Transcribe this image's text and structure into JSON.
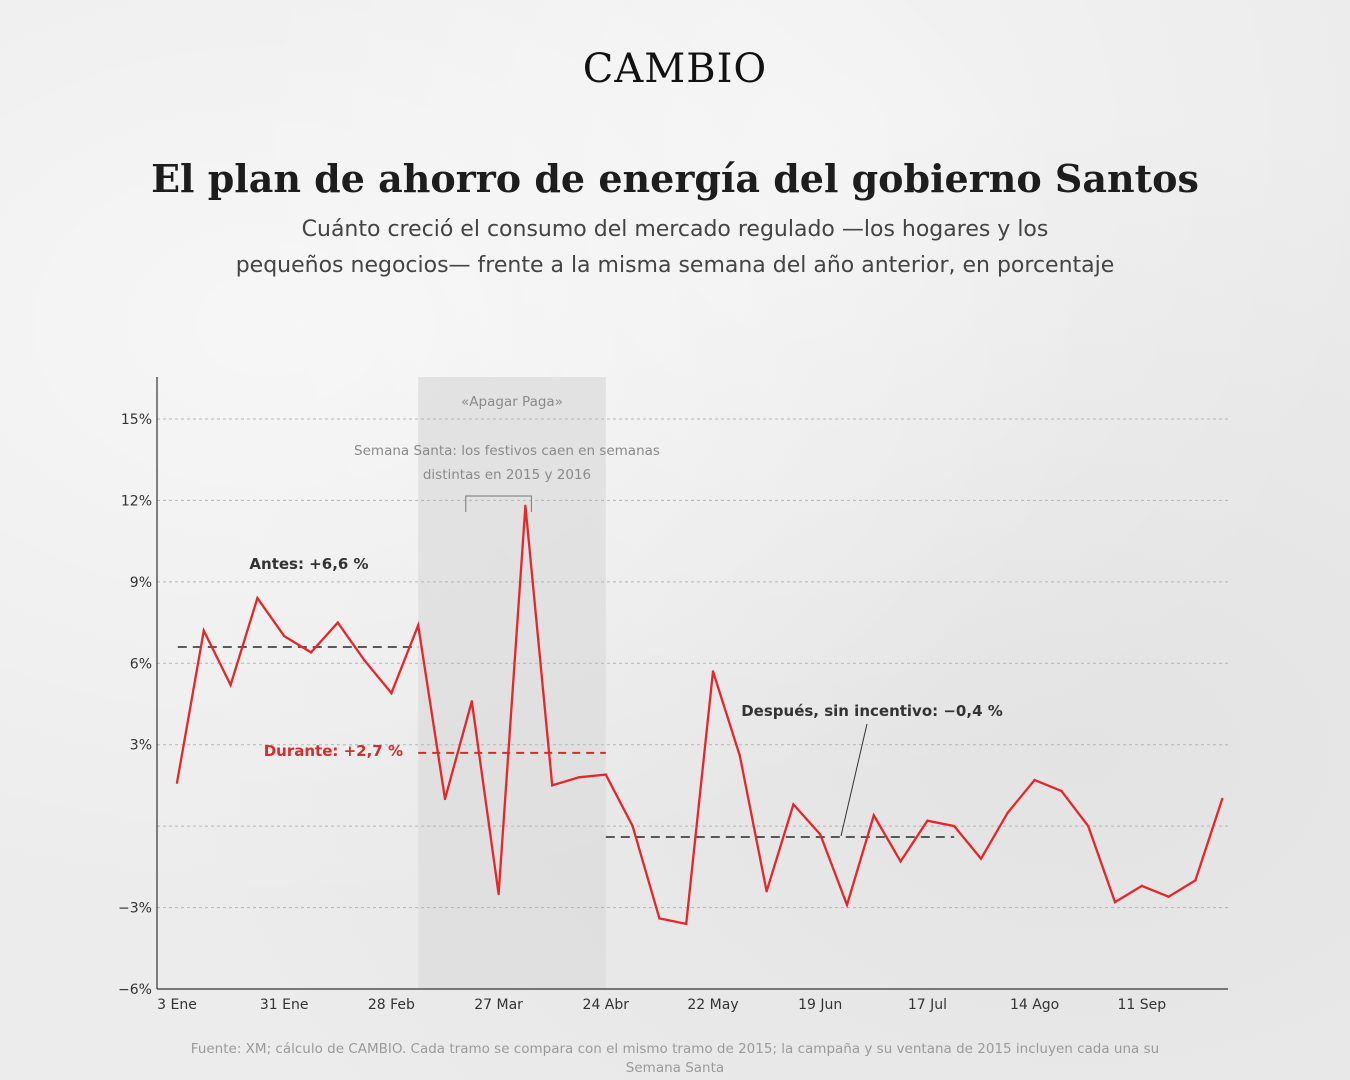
{
  "logo": "CAMBIO",
  "title": "El plan de ahorro de energía del gobierno Santos",
  "subtitle_line1": "Cuánto creció el consumo del mercado regulado —los hogares y los",
  "subtitle_line2": "pequeños negocios— frente a la misma semana del año anterior, en porcentaje",
  "source": "Fuente: XM; cálculo de CAMBIO. Cada tramo se compara con el mismo tramo de 2015; la campaña y su ventana de 2015 incluyen cada una su Semana Santa",
  "colors": {
    "line": "#e8262a",
    "during": "#d92b2b",
    "reference": "#444444",
    "band": "#dcdcdc"
  },
  "chart_data": {
    "type": "line",
    "title": "El plan de ahorro de energía del gobierno Santos",
    "xlabel": "",
    "ylabel": "",
    "ylim": [
      -6,
      16.5
    ],
    "y_ticks": [
      -6,
      -3,
      0,
      3,
      6,
      9,
      12,
      15
    ],
    "y_tick_labels": [
      "−6%",
      "−3%",
      "",
      "3%",
      "6%",
      "9%",
      "12%",
      "15%"
    ],
    "x_ticks": [
      {
        "date": "2016-01-03",
        "label": "3 Ene"
      },
      {
        "date": "2016-01-31",
        "label": "31 Ene"
      },
      {
        "date": "2016-02-28",
        "label": "28 Feb"
      },
      {
        "date": "2016-03-27",
        "label": "27 Mar"
      },
      {
        "date": "2016-04-24",
        "label": "24 Abr"
      },
      {
        "date": "2016-05-22",
        "label": "22 May"
      },
      {
        "date": "2016-06-19",
        "label": "19 Jun"
      },
      {
        "date": "2016-07-17",
        "label": "17 Jul"
      },
      {
        "date": "2016-08-14",
        "label": "14 Ago"
      },
      {
        "date": "2016-09-11",
        "label": "11 Sep"
      }
    ],
    "grid": "horizontal-dashed",
    "series": [
      {
        "x": [
          "2016-01-03",
          "2016-01-10",
          "2016-01-17",
          "2016-01-24",
          "2016-01-31",
          "2016-02-07",
          "2016-02-14",
          "2016-02-21",
          "2016-02-28",
          "2016-03-06",
          "2016-03-13",
          "2016-03-20",
          "2016-03-27",
          "2016-04-03",
          "2016-04-10",
          "2016-04-17",
          "2016-04-24",
          "2016-05-01",
          "2016-05-08",
          "2016-05-15",
          "2016-05-22",
          "2016-05-29",
          "2016-06-05",
          "2016-06-12",
          "2016-06-19",
          "2016-06-26",
          "2016-07-03",
          "2016-07-10",
          "2016-07-17",
          "2016-07-24",
          "2016-07-31",
          "2016-08-07",
          "2016-08-14",
          "2016-08-21",
          "2016-08-28",
          "2016-09-04",
          "2016-09-11",
          "2016-09-18",
          "2016-09-25",
          "2016-10-02"
        ],
        "values": [
          1.6,
          7.2,
          5.2,
          8.4,
          7.0,
          6.4,
          7.5,
          6.1,
          4.9,
          7.4,
          1.0,
          4.6,
          -2.5,
          11.8,
          1.5,
          1.8,
          1.9,
          0.0,
          -3.4,
          -3.6,
          5.7,
          2.6,
          -2.4,
          0.8,
          -0.3,
          -2.9,
          0.4,
          -1.3,
          0.2,
          0.0,
          -1.2,
          0.5,
          1.7,
          1.3,
          0.0,
          -2.8,
          -2.2,
          -2.6,
          -2.0,
          1.0
        ]
      }
    ],
    "periods": [
      {
        "name": "Antes",
        "label": "Antes: +6,6 %",
        "value": 6.6,
        "from": "2016-01-10",
        "to": "2016-03-06"
      },
      {
        "name": "Durante",
        "label": "Durante: +2,7 %",
        "value": 2.7,
        "from": "2016-03-06",
        "to": "2016-04-24"
      },
      {
        "name": "Después",
        "label": "Después, sin incentivo: −0,4 %",
        "value": -0.4,
        "from": "2016-04-24",
        "to": "2016-07-24"
      }
    ],
    "band": {
      "label": "«Apagar Paga»",
      "from": "2016-03-06",
      "to": "2016-04-24"
    },
    "annotations": [
      {
        "text_line1": "Semana Santa: los festivos caen en semanas",
        "text_line2": "distintas en 2015 y 2016",
        "from": "2016-03-20",
        "to": "2016-04-03"
      }
    ]
  }
}
